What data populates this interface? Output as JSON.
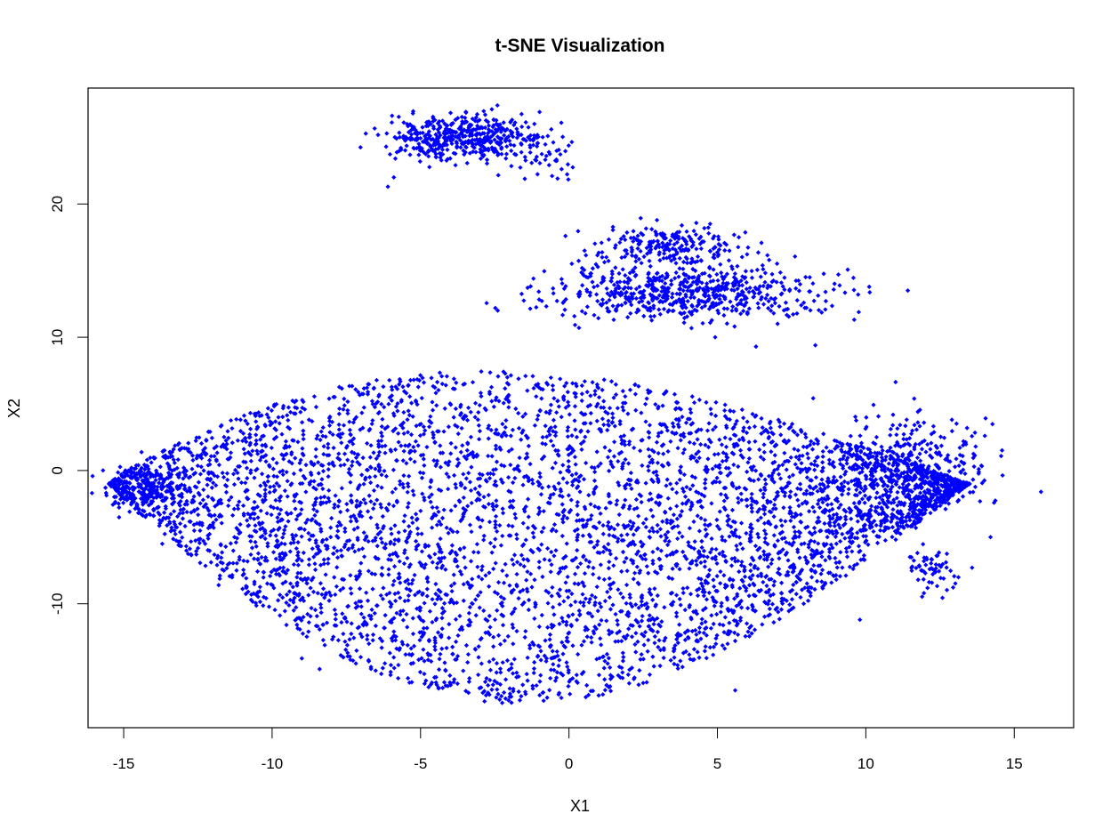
{
  "chart_data": {
    "type": "scatter",
    "title": "t-SNE Visualization",
    "xlabel": "X1",
    "ylabel": "X2",
    "xlim": [
      -16.2,
      17.0
    ],
    "ylim": [
      -19.3,
      28.7
    ],
    "xticks": [
      "-15",
      "-10",
      "-5",
      "0",
      "5",
      "10",
      "15"
    ],
    "xtick_values": [
      -15,
      -10,
      -5,
      0,
      5,
      10,
      15
    ],
    "yticks": [
      "-10",
      "0",
      "10",
      "20"
    ],
    "ytick_values": [
      -10,
      0,
      10,
      20
    ],
    "point_color": "#0000ff",
    "marker": "filled-diamond",
    "grid": false,
    "legend": "none",
    "series": [
      {
        "clusters": [
          {
            "cx": -2.0,
            "cy": -3.0,
            "sx": 6.0,
            "sy": 6.0,
            "n": 5200,
            "shape": "main-blob"
          },
          {
            "cx": -3.8,
            "cy": 25.0,
            "sx": 1.1,
            "sy": 0.8,
            "n": 420
          },
          {
            "cx": -1.2,
            "cy": 24.3,
            "sx": 0.9,
            "sy": 1.0,
            "n": 90
          },
          {
            "cx": 3.3,
            "cy": 17.0,
            "sx": 1.2,
            "sy": 0.7,
            "n": 210
          },
          {
            "cx": 4.0,
            "cy": 13.4,
            "sx": 2.4,
            "sy": 1.0,
            "n": 620
          },
          {
            "cx": 11.8,
            "cy": 1.0,
            "sx": 1.2,
            "sy": 1.8,
            "n": 260
          },
          {
            "cx": -14.3,
            "cy": -1.5,
            "sx": 0.7,
            "sy": 1.0,
            "n": 160
          },
          {
            "cx": 12.3,
            "cy": -7.4,
            "sx": 0.45,
            "sy": 0.9,
            "n": 60
          }
        ],
        "points": [
          [
            15.9,
            -1.6
          ],
          [
            14.2,
            -5.0
          ],
          [
            13.7,
            1.8
          ],
          [
            9.8,
            -11.2
          ],
          [
            -13.7,
            -5.5
          ],
          [
            -8.4,
            -14.9
          ],
          [
            -6.1,
            21.3
          ],
          [
            -5.9,
            22.0
          ],
          [
            -2.4,
            12.0
          ],
          [
            6.3,
            9.3
          ],
          [
            8.3,
            9.4
          ],
          [
            5.6,
            -16.5
          ],
          [
            -9.0,
            -14.1
          ],
          [
            -11.8,
            -8.6
          ]
        ]
      }
    ]
  }
}
